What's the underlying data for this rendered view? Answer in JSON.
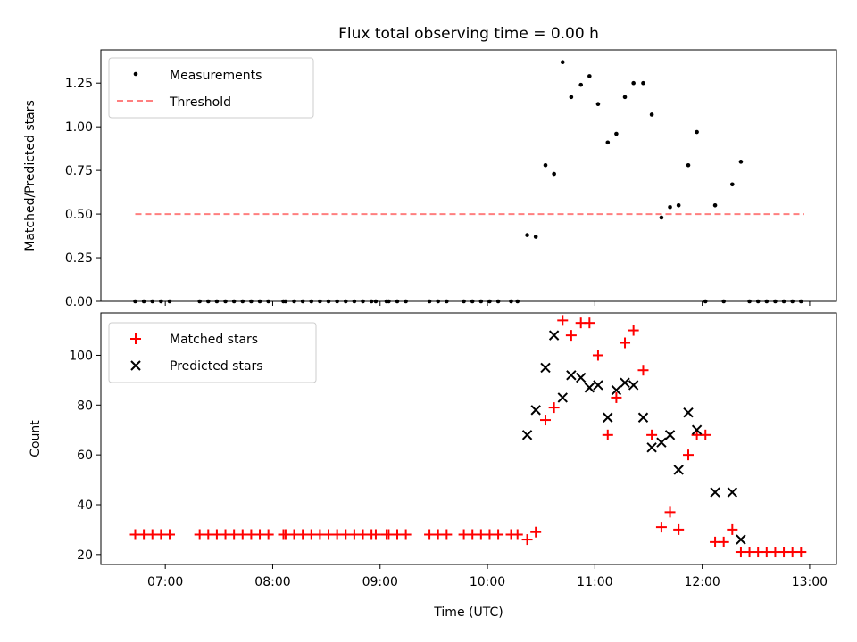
{
  "chart_data": [
    {
      "type": "scatter",
      "title": "Flux total observing time = 0.00 h",
      "xlabel": "",
      "ylabel": "Matched/Predicted stars",
      "xlim": [
        6.4,
        13.25
      ],
      "ylim": [
        0,
        1.44
      ],
      "yticks": [
        0,
        0.25,
        0.5,
        0.75,
        1.0,
        1.25
      ],
      "ytick_labels": [
        "0.00",
        "0.25",
        "0.50",
        "0.75",
        "1.00",
        "1.25"
      ],
      "legend_position": "top-left",
      "series": [
        {
          "name": "Measurements",
          "marker": "dot",
          "color": "#000000",
          "points": [
            [
              6.72,
              0
            ],
            [
              6.8,
              0
            ],
            [
              6.88,
              0
            ],
            [
              6.96,
              0
            ],
            [
              7.04,
              0
            ],
            [
              7.32,
              0
            ],
            [
              7.4,
              0
            ],
            [
              7.48,
              0
            ],
            [
              7.56,
              0
            ],
            [
              7.64,
              0
            ],
            [
              7.72,
              0
            ],
            [
              7.8,
              0
            ],
            [
              7.88,
              0
            ],
            [
              7.96,
              0
            ],
            [
              8.1,
              0
            ],
            [
              8.12,
              0
            ],
            [
              8.2,
              0
            ],
            [
              8.28,
              0
            ],
            [
              8.36,
              0
            ],
            [
              8.44,
              0
            ],
            [
              8.52,
              0
            ],
            [
              8.6,
              0
            ],
            [
              8.68,
              0
            ],
            [
              8.76,
              0
            ],
            [
              8.84,
              0
            ],
            [
              8.92,
              0
            ],
            [
              8.96,
              0
            ],
            [
              9.06,
              0
            ],
            [
              9.08,
              0
            ],
            [
              9.16,
              0
            ],
            [
              9.24,
              0
            ],
            [
              9.46,
              0
            ],
            [
              9.54,
              0
            ],
            [
              9.62,
              0
            ],
            [
              9.78,
              0
            ],
            [
              9.86,
              0
            ],
            [
              9.94,
              0
            ],
            [
              10.02,
              0
            ],
            [
              10.1,
              0
            ],
            [
              10.22,
              0
            ],
            [
              10.28,
              0
            ],
            [
              10.37,
              0.38
            ],
            [
              10.45,
              0.37
            ],
            [
              10.54,
              0.78
            ],
            [
              10.62,
              0.73
            ],
            [
              10.7,
              1.37
            ],
            [
              10.78,
              1.17
            ],
            [
              10.87,
              1.24
            ],
            [
              10.95,
              1.29
            ],
            [
              11.03,
              1.13
            ],
            [
              11.12,
              0.91
            ],
            [
              11.2,
              0.96
            ],
            [
              11.28,
              1.17
            ],
            [
              11.36,
              1.25
            ],
            [
              11.45,
              1.25
            ],
            [
              11.53,
              1.07
            ],
            [
              11.62,
              0.48
            ],
            [
              11.7,
              0.54
            ],
            [
              11.78,
              0.55
            ],
            [
              11.87,
              0.78
            ],
            [
              11.95,
              0.97
            ],
            [
              12.03,
              0
            ],
            [
              12.12,
              0.55
            ],
            [
              12.2,
              0
            ],
            [
              12.28,
              0.67
            ],
            [
              12.36,
              0.8
            ],
            [
              12.44,
              0
            ],
            [
              12.52,
              0
            ],
            [
              12.6,
              0
            ],
            [
              12.68,
              0
            ],
            [
              12.76,
              0
            ],
            [
              12.84,
              0
            ],
            [
              12.92,
              0
            ]
          ]
        },
        {
          "name": "Threshold",
          "style": "dashed-line",
          "color": "#ff7f7f",
          "x": [
            6.72,
            12.95
          ],
          "y": [
            0.5,
            0.5
          ]
        }
      ]
    },
    {
      "type": "scatter",
      "title": "",
      "xlabel": "Time (UTC)",
      "ylabel": "Count",
      "xlim": [
        6.4,
        13.25
      ],
      "ylim": [
        16,
        117
      ],
      "xticks": [
        7,
        8,
        9,
        10,
        11,
        12,
        13
      ],
      "xtick_labels": [
        "07:00",
        "08:00",
        "09:00",
        "10:00",
        "11:00",
        "12:00",
        "13:00"
      ],
      "yticks": [
        20,
        40,
        60,
        80,
        100
      ],
      "ytick_labels": [
        "20",
        "40",
        "60",
        "80",
        "100"
      ],
      "legend_position": "top-left",
      "series": [
        {
          "name": "Matched stars",
          "marker": "plus",
          "color": "#ff0000",
          "points": [
            [
              6.72,
              28
            ],
            [
              6.8,
              28
            ],
            [
              6.88,
              28
            ],
            [
              6.96,
              28
            ],
            [
              7.04,
              28
            ],
            [
              7.32,
              28
            ],
            [
              7.4,
              28
            ],
            [
              7.48,
              28
            ],
            [
              7.56,
              28
            ],
            [
              7.64,
              28
            ],
            [
              7.72,
              28
            ],
            [
              7.8,
              28
            ],
            [
              7.88,
              28
            ],
            [
              7.96,
              28
            ],
            [
              8.1,
              28
            ],
            [
              8.12,
              28
            ],
            [
              8.2,
              28
            ],
            [
              8.28,
              28
            ],
            [
              8.36,
              28
            ],
            [
              8.44,
              28
            ],
            [
              8.52,
              28
            ],
            [
              8.6,
              28
            ],
            [
              8.68,
              28
            ],
            [
              8.76,
              28
            ],
            [
              8.84,
              28
            ],
            [
              8.92,
              28
            ],
            [
              8.96,
              28
            ],
            [
              9.06,
              28
            ],
            [
              9.08,
              28
            ],
            [
              9.16,
              28
            ],
            [
              9.24,
              28
            ],
            [
              9.46,
              28
            ],
            [
              9.54,
              28
            ],
            [
              9.62,
              28
            ],
            [
              9.78,
              28
            ],
            [
              9.86,
              28
            ],
            [
              9.94,
              28
            ],
            [
              10.02,
              28
            ],
            [
              10.1,
              28
            ],
            [
              10.22,
              28
            ],
            [
              10.28,
              28
            ],
            [
              10.37,
              26
            ],
            [
              10.45,
              29
            ],
            [
              10.54,
              74
            ],
            [
              10.62,
              79
            ],
            [
              10.7,
              114
            ],
            [
              10.78,
              108
            ],
            [
              10.87,
              113
            ],
            [
              10.95,
              113
            ],
            [
              11.03,
              100
            ],
            [
              11.12,
              68
            ],
            [
              11.2,
              83
            ],
            [
              11.28,
              105
            ],
            [
              11.36,
              110
            ],
            [
              11.45,
              94
            ],
            [
              11.53,
              68
            ],
            [
              11.62,
              31
            ],
            [
              11.7,
              37
            ],
            [
              11.78,
              30
            ],
            [
              11.87,
              60
            ],
            [
              11.95,
              68
            ],
            [
              12.03,
              68
            ],
            [
              12.12,
              25
            ],
            [
              12.2,
              25
            ],
            [
              12.28,
              30
            ],
            [
              12.36,
              21
            ],
            [
              12.44,
              21
            ],
            [
              12.52,
              21
            ],
            [
              12.6,
              21
            ],
            [
              12.68,
              21
            ],
            [
              12.76,
              21
            ],
            [
              12.84,
              21
            ],
            [
              12.92,
              21
            ]
          ]
        },
        {
          "name": "Predicted stars",
          "marker": "x",
          "color": "#000000",
          "points": [
            [
              10.37,
              68
            ],
            [
              10.45,
              78
            ],
            [
              10.54,
              95
            ],
            [
              10.62,
              108
            ],
            [
              10.7,
              83
            ],
            [
              10.78,
              92
            ],
            [
              10.87,
              91
            ],
            [
              10.95,
              87
            ],
            [
              11.03,
              88
            ],
            [
              11.12,
              75
            ],
            [
              11.2,
              86
            ],
            [
              11.28,
              89
            ],
            [
              11.36,
              88
            ],
            [
              11.45,
              75
            ],
            [
              11.53,
              63
            ],
            [
              11.62,
              65
            ],
            [
              11.7,
              68
            ],
            [
              11.78,
              54
            ],
            [
              11.87,
              77
            ],
            [
              11.95,
              70
            ],
            [
              12.12,
              45
            ],
            [
              12.28,
              45
            ],
            [
              12.36,
              26
            ]
          ]
        }
      ]
    }
  ]
}
